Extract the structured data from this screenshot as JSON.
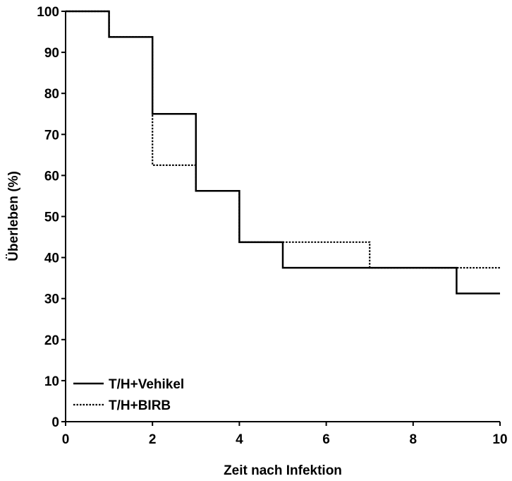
{
  "chart_data": {
    "type": "line",
    "step": true,
    "title": "",
    "xlabel": "Zeit nach Infektion",
    "ylabel": "Überleben (%)",
    "xlim": [
      0,
      10
    ],
    "ylim": [
      0,
      100
    ],
    "x_ticks": [
      "0",
      "2",
      "4",
      "6",
      "8",
      "10"
    ],
    "y_ticks": [
      "0",
      "10",
      "20",
      "30",
      "40",
      "50",
      "60",
      "70",
      "80",
      "90",
      "100"
    ],
    "grid": false,
    "legend": "bottom-left",
    "series": [
      {
        "name": "T/H+Vehikel",
        "style": "solid",
        "color": "#000000",
        "points": [
          [
            0,
            100
          ],
          [
            1,
            93.75
          ],
          [
            2,
            75
          ],
          [
            3,
            56.25
          ],
          [
            4,
            43.75
          ],
          [
            5,
            37.5
          ],
          [
            9,
            31.25
          ],
          [
            10,
            31.25
          ]
        ]
      },
      {
        "name": "T/H+BIRB",
        "style": "dotted",
        "color": "#000000",
        "points": [
          [
            0,
            100
          ],
          [
            1,
            93.75
          ],
          [
            2,
            62.5
          ],
          [
            3,
            56.25
          ],
          [
            4,
            43.75
          ],
          [
            7,
            37.5
          ],
          [
            10,
            37.5
          ]
        ]
      }
    ]
  }
}
